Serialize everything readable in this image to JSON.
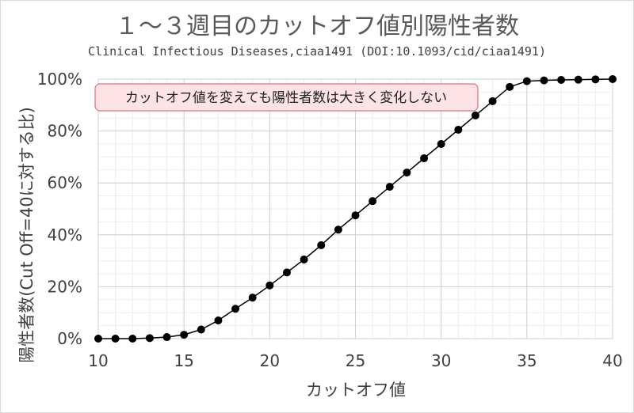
{
  "chart_data": {
    "type": "line",
    "title": "１～３週目のカットオフ値別陽性者数",
    "subtitle": "Clinical Infectious Diseases,ciaa1491 (DOI:10.1093/cid/ciaa1491)",
    "xlabel": "カットオフ値",
    "ylabel": "陽性者数(Cut Off=40に対する比)",
    "xlim": [
      10,
      40
    ],
    "ylim": [
      0,
      100
    ],
    "x_ticks": [
      "10",
      "15",
      "20",
      "25",
      "30",
      "35",
      "40"
    ],
    "y_ticks": [
      "0%",
      "20%",
      "40%",
      "60%",
      "80%",
      "100%"
    ],
    "grid": true,
    "annotation": "カットオフ値を変えても陽性者数は大きく変化しない",
    "series": [
      {
        "x": [
          10,
          11,
          12,
          13,
          14,
          15,
          16,
          17,
          18,
          19,
          20,
          21,
          22,
          23,
          24,
          25,
          26,
          27,
          28,
          29,
          30,
          31,
          32,
          33,
          34,
          35,
          36,
          37,
          38,
          39,
          40
        ],
        "values": [
          0,
          0,
          0,
          0.2,
          0.6,
          1.5,
          3.5,
          7,
          11.5,
          15.8,
          20.5,
          25.5,
          30.5,
          36,
          42,
          47.5,
          53,
          58.5,
          64,
          69.5,
          75,
          80.5,
          86,
          91.5,
          97,
          99.2,
          99.5,
          99.7,
          99.8,
          99.9,
          100
        ],
        "color": "#000000"
      }
    ]
  }
}
